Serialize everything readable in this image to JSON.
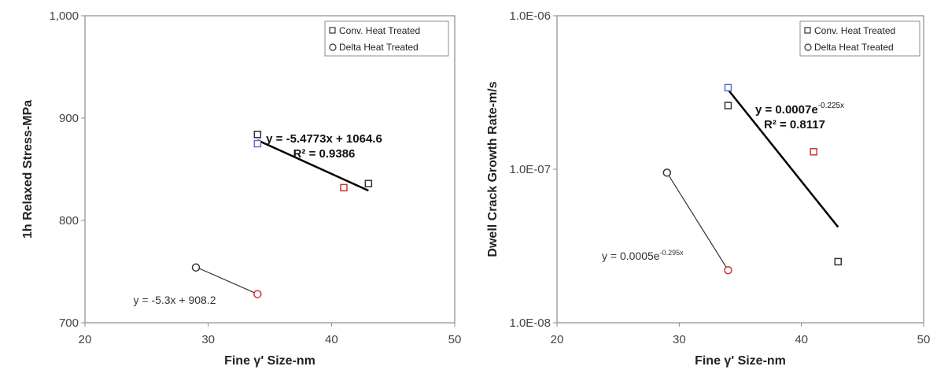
{
  "chart_data": [
    {
      "type": "scatter",
      "x_scale": "linear",
      "y_scale": "linear",
      "xlim": [
        20,
        50
      ],
      "ylim": [
        700,
        1000
      ],
      "xticks": [
        20,
        30,
        40,
        50
      ],
      "xtick_labels": [
        "20",
        "30",
        "40",
        "50"
      ],
      "yticks": [
        700,
        800,
        900,
        1000
      ],
      "ytick_labels": [
        "700",
        "800",
        "900",
        "1,000"
      ],
      "xlabel": "Fine γ' Size-nm",
      "ylabel": "1h Relaxed Stress-MPa",
      "grid": false,
      "legend_position": "top-right",
      "legend": [
        {
          "label": "Conv. Heat Treated",
          "marker": "square"
        },
        {
          "label": "Delta Heat Treated",
          "marker": "circle"
        }
      ],
      "series": [
        {
          "name": "Conv. Heat Treated",
          "marker": "square",
          "points": [
            {
              "x": 34,
              "y": 884,
              "color": "#333333"
            },
            {
              "x": 34,
              "y": 875,
              "color": "#5b6ec9"
            },
            {
              "x": 41,
              "y": 832,
              "color": "#cc3333"
            },
            {
              "x": 43,
              "y": 836,
              "color": "#333333"
            }
          ]
        },
        {
          "name": "Delta Heat Treated",
          "marker": "circle",
          "points": [
            {
              "x": 29,
              "y": 754,
              "color": "#333333"
            },
            {
              "x": 34,
              "y": 728,
              "color": "#cc3333"
            }
          ]
        }
      ],
      "trendlines": [
        {
          "series": "Conv. Heat Treated",
          "x": [
            34,
            43
          ],
          "y": [
            878.4,
            829.1
          ],
          "stroke_width": 2.5,
          "color": "#000000"
        },
        {
          "series": "Delta Heat Treated",
          "x": [
            29,
            34
          ],
          "y": [
            754.5,
            728.0
          ],
          "stroke_width": 1.2,
          "color": "#333333"
        }
      ],
      "annotations": [
        {
          "id": "conv-equation",
          "lines": [
            "y = -5.4773x + 1064.6",
            "R² = 0.9386"
          ],
          "bold": true,
          "anchor_x": 40.5,
          "anchor_y": 862
        },
        {
          "id": "delta-equation",
          "lines": [
            "y = -5.3x + 908.2"
          ],
          "bold": false,
          "anchor_x": 24.8,
          "anchor_y": 722
        }
      ]
    },
    {
      "type": "scatter",
      "x_scale": "linear",
      "y_scale": "log",
      "xlim": [
        20,
        50
      ],
      "ylim": [
        1e-08,
        1e-06
      ],
      "xticks": [
        20,
        30,
        40,
        50
      ],
      "xtick_labels": [
        "20",
        "30",
        "40",
        "50"
      ],
      "yticks": [
        1e-08,
        1e-07,
        1e-06
      ],
      "ytick_labels": [
        "1.0E-08",
        "1.0E-07",
        "1.0E-06"
      ],
      "xlabel": "Fine γ' Size-nm",
      "ylabel": "Dwell Crack Growth Rate-m/s",
      "grid": false,
      "legend_position": "top-right",
      "legend": [
        {
          "label": "Conv. Heat Treated",
          "marker": "square"
        },
        {
          "label": "Delta Heat Treated",
          "marker": "circle"
        }
      ],
      "series": [
        {
          "name": "Conv. Heat Treated",
          "marker": "square",
          "points": [
            {
              "x": 34,
              "y": 3.4e-07,
              "color": "#5b6ec9"
            },
            {
              "x": 34,
              "y": 2.6e-07,
              "color": "#333333"
            },
            {
              "x": 41,
              "y": 1.3e-07,
              "color": "#cc3333"
            },
            {
              "x": 43,
              "y": 2.5e-08,
              "color": "#333333"
            }
          ]
        },
        {
          "name": "Delta Heat Treated",
          "marker": "circle",
          "points": [
            {
              "x": 29,
              "y": 9.5e-08,
              "color": "#333333"
            },
            {
              "x": 34,
              "y": 2.2e-08,
              "color": "#cc3333"
            }
          ]
        }
      ],
      "trendlines": [
        {
          "series": "Conv. Heat Treated",
          "x": [
            34,
            43
          ],
          "y": [
            3.3e-07,
            4.2e-08
          ],
          "stroke_width": 2.5,
          "color": "#000000"
        },
        {
          "series": "Delta Heat Treated",
          "x": [
            29,
            34
          ],
          "y": [
            9.5e-08,
            2.2e-08
          ],
          "stroke_width": 1.2,
          "color": "#333333"
        }
      ],
      "annotations": [
        {
          "id": "conv-equation",
          "lines": [
            "y = 0.0007e",
            "-0.225x",
            "R² = 0.8117"
          ],
          "bold": true,
          "anchor_x": 36.5,
          "anchor_y": 2.3e-07
        },
        {
          "id": "delta-equation",
          "lines": [
            "y = 0.0005e",
            "-0.295x"
          ],
          "bold": false,
          "anchor_x": 23.8,
          "anchor_y": 3e-08
        }
      ]
    }
  ]
}
